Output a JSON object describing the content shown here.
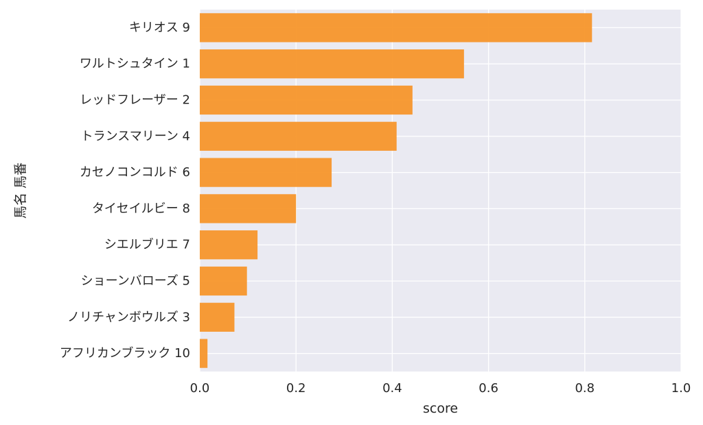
{
  "chart_data": {
    "type": "bar",
    "orientation": "horizontal",
    "categories": [
      "キリオス 9",
      "ワルトシュタイン 1",
      "レッドフレーザー 2",
      "トランスマリーン 4",
      "カセノコンコルド 6",
      "タイセイルビー 8",
      "シエルブリエ 7",
      "ショーンバローズ 5",
      "ノリチャンボウルズ 3",
      "アフリカンブラック 10"
    ],
    "values": [
      0.815,
      0.549,
      0.442,
      0.409,
      0.274,
      0.2,
      0.12,
      0.098,
      0.072,
      0.016
    ],
    "xlabel": "score",
    "ylabel": "馬名 馬番",
    "xlim": [
      0,
      1.0
    ],
    "xticks": [
      "0.0",
      "0.2",
      "0.4",
      "0.6",
      "0.8",
      "1.0"
    ],
    "grid": true,
    "legend": "none",
    "colors": {
      "bar": "#f7962b",
      "background": "#eaeaf2",
      "grid": "#ffffff"
    }
  }
}
